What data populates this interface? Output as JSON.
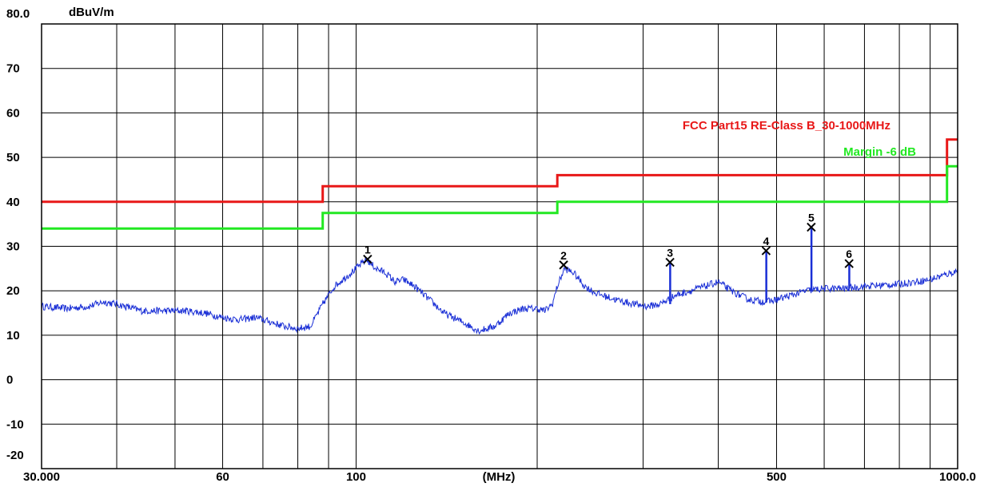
{
  "chart_data": {
    "type": "line",
    "title": "",
    "ylabel": "dBuV/m",
    "xlabel": "(MHz)",
    "x_scale": "log",
    "xlim": [
      30,
      1000
    ],
    "ylim": [
      -20,
      80
    ],
    "grid": true,
    "y_ticks": [
      "80.0",
      "70",
      "60",
      "50",
      "40",
      "30",
      "20",
      "10",
      "0",
      "-10",
      "-20"
    ],
    "x_tick_labels": [
      {
        "x": 30,
        "label": "30.000"
      },
      {
        "x": 60,
        "label": "60"
      },
      {
        "x": 100,
        "label": "100"
      },
      {
        "x": 500,
        "label": "500"
      },
      {
        "x": 1000,
        "label": "1000.0"
      }
    ],
    "colors": {
      "limit": "#e81818",
      "margin": "#22e822",
      "trace": "#1a2fd6",
      "grid": "#000000"
    },
    "series": [
      {
        "name": "FCC Part15 RE-Class B_30-1000MHz",
        "step": true,
        "x": [
          30,
          88,
          88,
          216,
          216,
          960,
          960,
          1000
        ],
        "y": [
          40,
          40,
          43.5,
          43.5,
          46,
          46,
          54,
          54
        ]
      },
      {
        "name": "Margin -6 dB",
        "step": true,
        "x": [
          30,
          88,
          88,
          216,
          216,
          960,
          960,
          1000
        ],
        "y": [
          34,
          34,
          37.5,
          37.5,
          40,
          40,
          48,
          48
        ]
      },
      {
        "name": "",
        "x": [
          30,
          33,
          36,
          38,
          40,
          44,
          48,
          52,
          56,
          60,
          64,
          68,
          72,
          76,
          80,
          84,
          88,
          92,
          96,
          100,
          104,
          108,
          112,
          116,
          120,
          125,
          130,
          140,
          150,
          160,
          170,
          180,
          190,
          200,
          206,
          212,
          216,
          222,
          230,
          240,
          250,
          270,
          290,
          305,
          320,
          340,
          360,
          380,
          400,
          420,
          450,
          480,
          500,
          530,
          560,
          600,
          650,
          700,
          800,
          900,
          1000
        ],
        "y": [
          16.5,
          16,
          16.5,
          17.5,
          17,
          15.5,
          15.5,
          15.5,
          15,
          14,
          13.5,
          14,
          13,
          12,
          11.5,
          12,
          17,
          21,
          23,
          25,
          27,
          25,
          24,
          22,
          22.5,
          21,
          19,
          15,
          13,
          11,
          12,
          15,
          16,
          16,
          15.5,
          17,
          21,
          25,
          24,
          21,
          19.5,
          18,
          17,
          16.5,
          17,
          19,
          20,
          21,
          22,
          20,
          18,
          17.5,
          18,
          19,
          20,
          20.5,
          20.5,
          21,
          21.5,
          22.5,
          24.5
        ]
      }
    ],
    "markers": [
      {
        "label": "1",
        "x": 104.5,
        "y": 27.1,
        "spike_base": null
      },
      {
        "label": "2",
        "x": 221.3,
        "y": 25.8,
        "spike_base": null
      },
      {
        "label": "3",
        "x": 332.5,
        "y": 26.4,
        "spike_base": 17
      },
      {
        "label": "4",
        "x": 480.4,
        "y": 29.0,
        "spike_base": 17.5
      },
      {
        "label": "5",
        "x": 571.0,
        "y": 34.3,
        "spike_base": 20
      },
      {
        "label": "6",
        "x": 660.0,
        "y": 26.1,
        "spike_base": 20.5
      }
    ],
    "legend_entries": [
      {
        "text": "FCC Part15 RE-Class B_30-1000MHz",
        "color": "#e81818"
      },
      {
        "text": "Margin -6 dB",
        "color": "#22e822"
      }
    ],
    "legend_placement": "upper-right"
  }
}
